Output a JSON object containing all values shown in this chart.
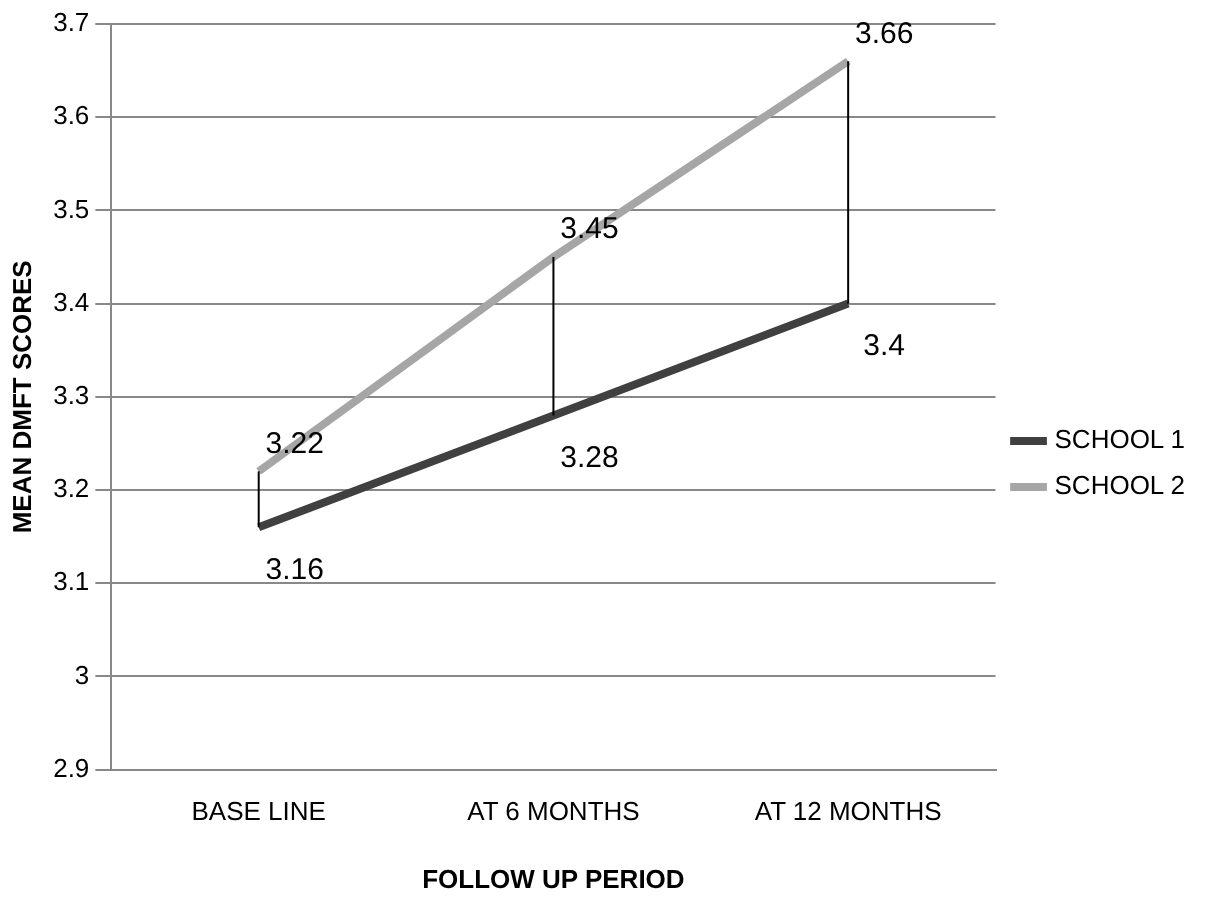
{
  "chart_data": {
    "type": "line",
    "xlabel": "FOLLOW UP PERIOD",
    "ylabel": "MEAN DMFT SCORES",
    "categories": [
      "BASE LINE",
      "AT 6 MONTHS",
      "AT 12 MONTHS"
    ],
    "series": [
      {
        "name": "SCHOOL 1",
        "color": "#404040",
        "values": [
          3.16,
          3.28,
          3.4
        ]
      },
      {
        "name": "SCHOOL 2",
        "color": "#a6a6a6",
        "values": [
          3.22,
          3.45,
          3.66
        ]
      }
    ],
    "ylim": [
      2.9,
      3.7
    ],
    "yticks": [
      2.9,
      3,
      3.1,
      3.2,
      3.3,
      3.4,
      3.5,
      3.6,
      3.7
    ],
    "grid": "y",
    "legend": "right",
    "marker": "none",
    "line_style": "solid",
    "data_labels": true
  }
}
